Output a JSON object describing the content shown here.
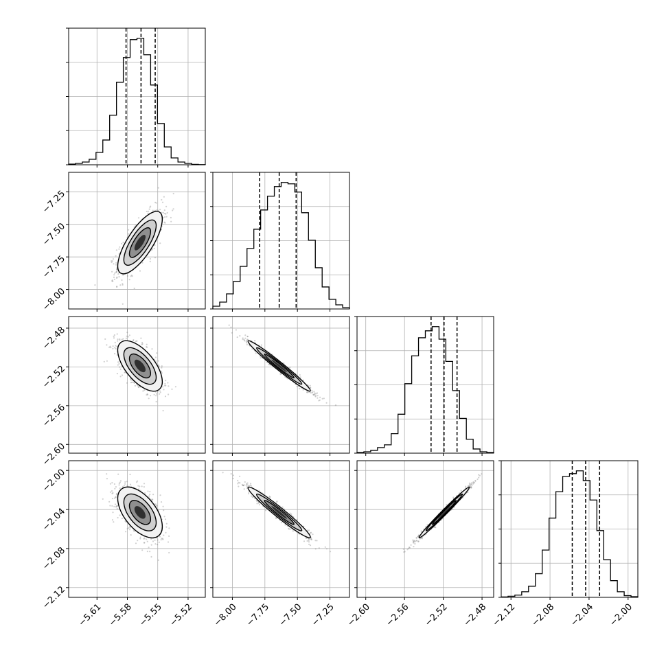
{
  "chart_data": {
    "type": "corner",
    "colors": {
      "ink": "#000000",
      "grid": "#b0b0b0",
      "density": "#000000",
      "background": "#ffffff"
    },
    "grid": true,
    "params": [
      {
        "ticks": [
          "−5.61",
          "−5.58",
          "−5.55",
          "−5.52"
        ],
        "tick_values": [
          -5.61,
          -5.58,
          -5.55,
          -5.52
        ],
        "range": [
          -5.638,
          -5.503
        ],
        "mean": -5.5675,
        "sd": 0.011,
        "quantiles": [
          -5.5813,
          -5.5665,
          -5.5525
        ],
        "hist": [
          0.5,
          1,
          2,
          4,
          9,
          18,
          36,
          60,
          78,
          91,
          92,
          80,
          58,
          30,
          13,
          5,
          2,
          1,
          0.3,
          0.1
        ]
      },
      {
        "ticks": [
          "−8.00",
          "−7.75",
          "−7.50",
          "−7.25"
        ],
        "tick_values": [
          -8.0,
          -7.75,
          -7.5,
          -7.25
        ],
        "range": [
          -8.15,
          -7.1
        ],
        "mean": -7.64,
        "sd": 0.12,
        "quantiles": [
          -7.79,
          -7.64,
          -7.51
        ],
        "hist": [
          2,
          5,
          11,
          20,
          31,
          44,
          58,
          72,
          82,
          89,
          92,
          91,
          85,
          70,
          50,
          30,
          16,
          7,
          3,
          1
        ]
      },
      {
        "ticks": [
          "−2.60",
          "−2.56",
          "−2.52",
          "−2.48"
        ],
        "tick_values": [
          -2.6,
          -2.56,
          -2.52,
          -2.48
        ],
        "range": [
          -2.609,
          -2.468
        ],
        "mean": -2.519,
        "sd": 0.013,
        "quantiles": [
          -2.5326,
          -2.5192,
          -2.5058
        ],
        "hist": [
          0.5,
          1,
          2,
          4,
          6,
          14,
          28,
          50,
          70,
          83,
          88,
          91,
          82,
          66,
          45,
          25,
          10,
          3,
          1,
          0.5
        ]
      },
      {
        "ticks": [
          "−2.12",
          "−2.08",
          "−2.04",
          "−2.00"
        ],
        "tick_values": [
          -2.12,
          -2.08,
          -2.04,
          -2.0
        ],
        "range": [
          -2.13,
          -1.99
        ],
        "mean": -2.043,
        "sd": 0.013,
        "quantiles": [
          -2.0572,
          -2.0435,
          -2.0292
        ],
        "hist": [
          0.3,
          0.8,
          1.6,
          4,
          8,
          17,
          34,
          57,
          76,
          87,
          89,
          91,
          84,
          70,
          48,
          27,
          12,
          4,
          1.2,
          0.5
        ]
      }
    ],
    "pairs": [
      {
        "row": 1,
        "col": 0,
        "corr": 0.75
      },
      {
        "row": 2,
        "col": 0,
        "corr": -0.62
      },
      {
        "row": 2,
        "col": 1,
        "corr": -0.98
      },
      {
        "row": 3,
        "col": 0,
        "corr": -0.55
      },
      {
        "row": 3,
        "col": 1,
        "corr": -0.97
      },
      {
        "row": 3,
        "col": 2,
        "corr": 0.99
      }
    ]
  }
}
